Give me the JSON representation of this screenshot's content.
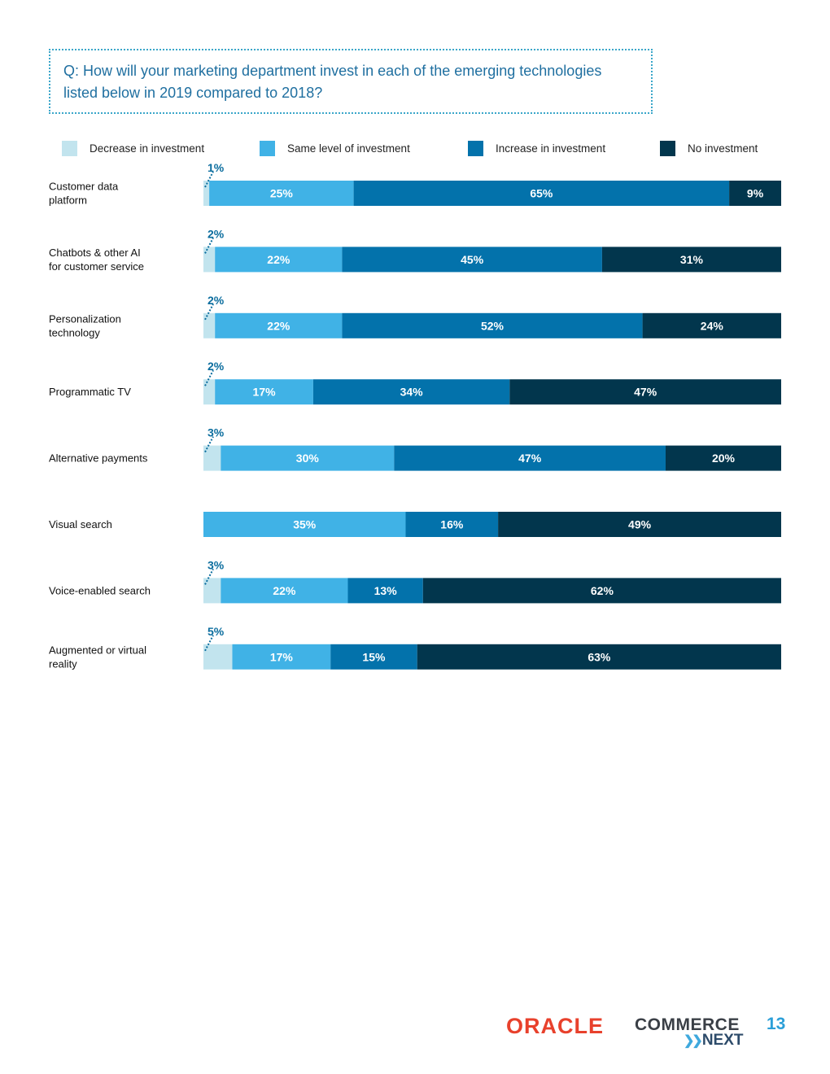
{
  "question": "Q: How will your marketing department invest in each of the emerging technologies listed below in 2019 compared to 2018?",
  "legend": [
    {
      "label": "Decrease in investment",
      "color": "#c2e4ee"
    },
    {
      "label": "Same level of investment",
      "color": "#40b2e6"
    },
    {
      "label": "Increase in investment",
      "color": "#0372ab"
    },
    {
      "label": "No investment",
      "color": "#02364d"
    }
  ],
  "chart_data": {
    "type": "bar",
    "orientation": "horizontal",
    "stacked": true,
    "title": "Q: How will your marketing department invest in each of the emerging technologies listed below in 2019 compared to 2018?",
    "categories": [
      [
        "Customer data",
        "platform"
      ],
      [
        "Chatbots & other AI",
        "for customer service"
      ],
      [
        "Personalization",
        "technology"
      ],
      [
        "Programmatic TV"
      ],
      [
        "Alternative payments"
      ],
      [
        "Visual search"
      ],
      [
        "Voice-enabled search"
      ],
      [
        "Augmented or virtual",
        "reality"
      ]
    ],
    "series": [
      {
        "name": "Decrease in investment",
        "color": "#c2e4ee",
        "values": [
          1,
          2,
          2,
          2,
          3,
          0,
          3,
          5
        ]
      },
      {
        "name": "Same level of investment",
        "color": "#40b2e6",
        "values": [
          25,
          22,
          22,
          17,
          30,
          35,
          22,
          17
        ]
      },
      {
        "name": "Increase in investment",
        "color": "#0372ab",
        "values": [
          65,
          45,
          52,
          34,
          47,
          16,
          13,
          15
        ]
      },
      {
        "name": "No investment",
        "color": "#02364d",
        "values": [
          9,
          31,
          24,
          47,
          20,
          49,
          62,
          63
        ]
      }
    ],
    "data_labels": [
      [
        "1%",
        "25%",
        "65%",
        "9%"
      ],
      [
        "2%",
        "22%",
        "45%",
        "31%"
      ],
      [
        "2%",
        "22%",
        "52%",
        "24%"
      ],
      [
        "2%",
        "17%",
        "34%",
        "47%"
      ],
      [
        "3%",
        "30%",
        "47%",
        "20%"
      ],
      [
        "",
        "35%",
        "16%",
        "49%"
      ],
      [
        "3%",
        "22%",
        "13%",
        "62%"
      ],
      [
        "5%",
        "17%",
        "15%",
        "63%"
      ]
    ],
    "xlim": [
      0,
      100
    ],
    "legend_position": "top"
  },
  "footer": {
    "oracle": "ORACLE",
    "commerce": "COMMERCE",
    "next": "NEXT",
    "page_number": "13"
  }
}
